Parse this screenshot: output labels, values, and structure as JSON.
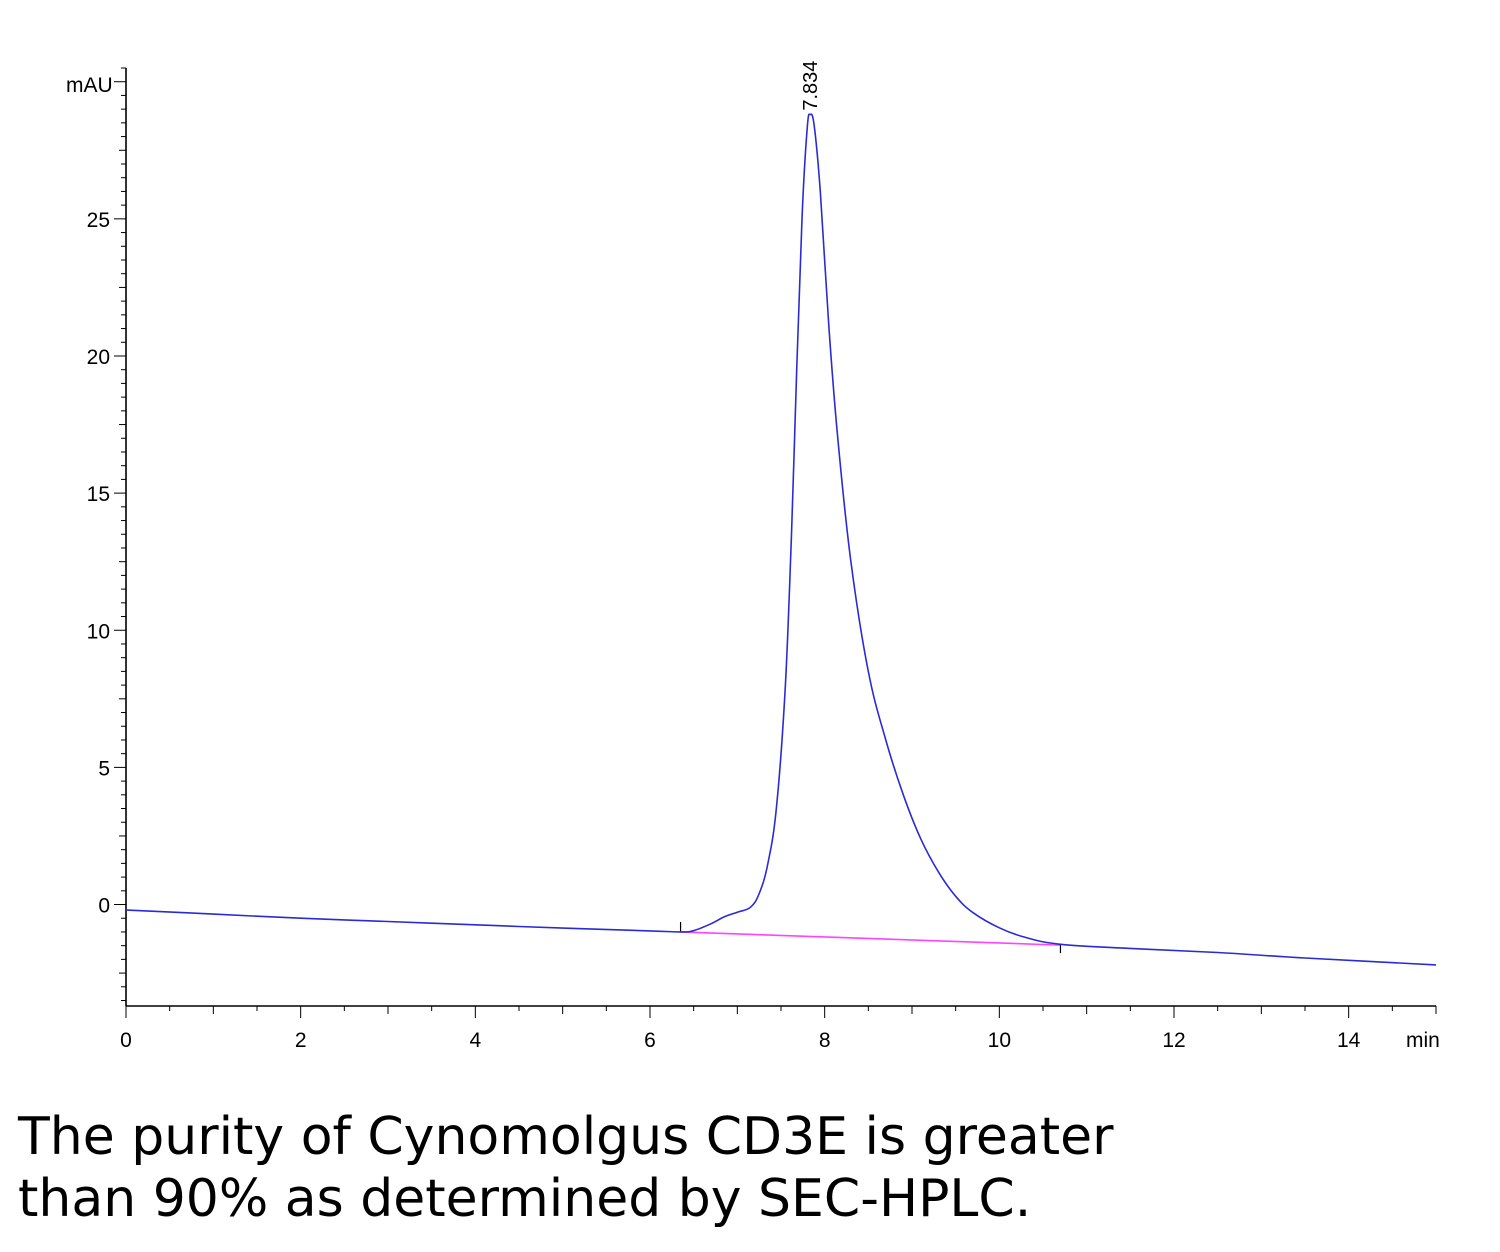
{
  "chart_data": {
    "type": "line",
    "y_unit": "mAU",
    "x_unit": "min",
    "xlim": [
      0,
      15
    ],
    "ylim": [
      -3.7,
      30.5
    ],
    "x_ticks": [
      0,
      2,
      4,
      6,
      8,
      10,
      12,
      14
    ],
    "y_ticks": [
      0,
      5,
      10,
      15,
      20,
      25
    ],
    "grid": false,
    "series": [
      {
        "color": "#2b2bd6",
        "points": [
          [
            0,
            -0.2
          ],
          [
            1,
            -0.35
          ],
          [
            2,
            -0.5
          ],
          [
            3,
            -0.62
          ],
          [
            4,
            -0.74
          ],
          [
            5,
            -0.86
          ],
          [
            6.0,
            -0.96
          ],
          [
            6.35,
            -1.0
          ],
          [
            6.5,
            -0.95
          ],
          [
            6.7,
            -0.7
          ],
          [
            6.85,
            -0.45
          ],
          [
            7.0,
            -0.28
          ],
          [
            7.15,
            -0.1
          ],
          [
            7.25,
            0.4
          ],
          [
            7.35,
            1.5
          ],
          [
            7.45,
            3.6
          ],
          [
            7.55,
            8.0
          ],
          [
            7.62,
            13.5
          ],
          [
            7.68,
            19.5
          ],
          [
            7.74,
            25.0
          ],
          [
            7.8,
            28.3
          ],
          [
            7.834,
            28.8
          ],
          [
            7.88,
            28.4
          ],
          [
            7.95,
            26.0
          ],
          [
            8.05,
            21.0
          ],
          [
            8.15,
            17.0
          ],
          [
            8.3,
            12.5
          ],
          [
            8.5,
            8.5
          ],
          [
            8.7,
            6.0
          ],
          [
            8.9,
            4.0
          ],
          [
            9.1,
            2.4
          ],
          [
            9.3,
            1.2
          ],
          [
            9.5,
            0.3
          ],
          [
            9.7,
            -0.3
          ],
          [
            10.0,
            -0.85
          ],
          [
            10.3,
            -1.2
          ],
          [
            10.7,
            -1.45
          ],
          [
            11.5,
            -1.6
          ],
          [
            12.5,
            -1.75
          ],
          [
            13.5,
            -1.95
          ],
          [
            15.0,
            -2.2
          ]
        ]
      }
    ],
    "baseline": {
      "color": "#ff44ff",
      "x": [
        6.35,
        10.7
      ],
      "y": [
        -1.0,
        -1.48
      ]
    },
    "peak_markers": [
      6.35,
      10.7
    ],
    "annotations": [
      {
        "label": "7.834",
        "x": 7.834,
        "y": 28.8
      }
    ]
  },
  "caption": {
    "line1": "The purity of Cynomolgus CD3E is greater",
    "line2": "than 90% as determined by SEC-HPLC."
  }
}
